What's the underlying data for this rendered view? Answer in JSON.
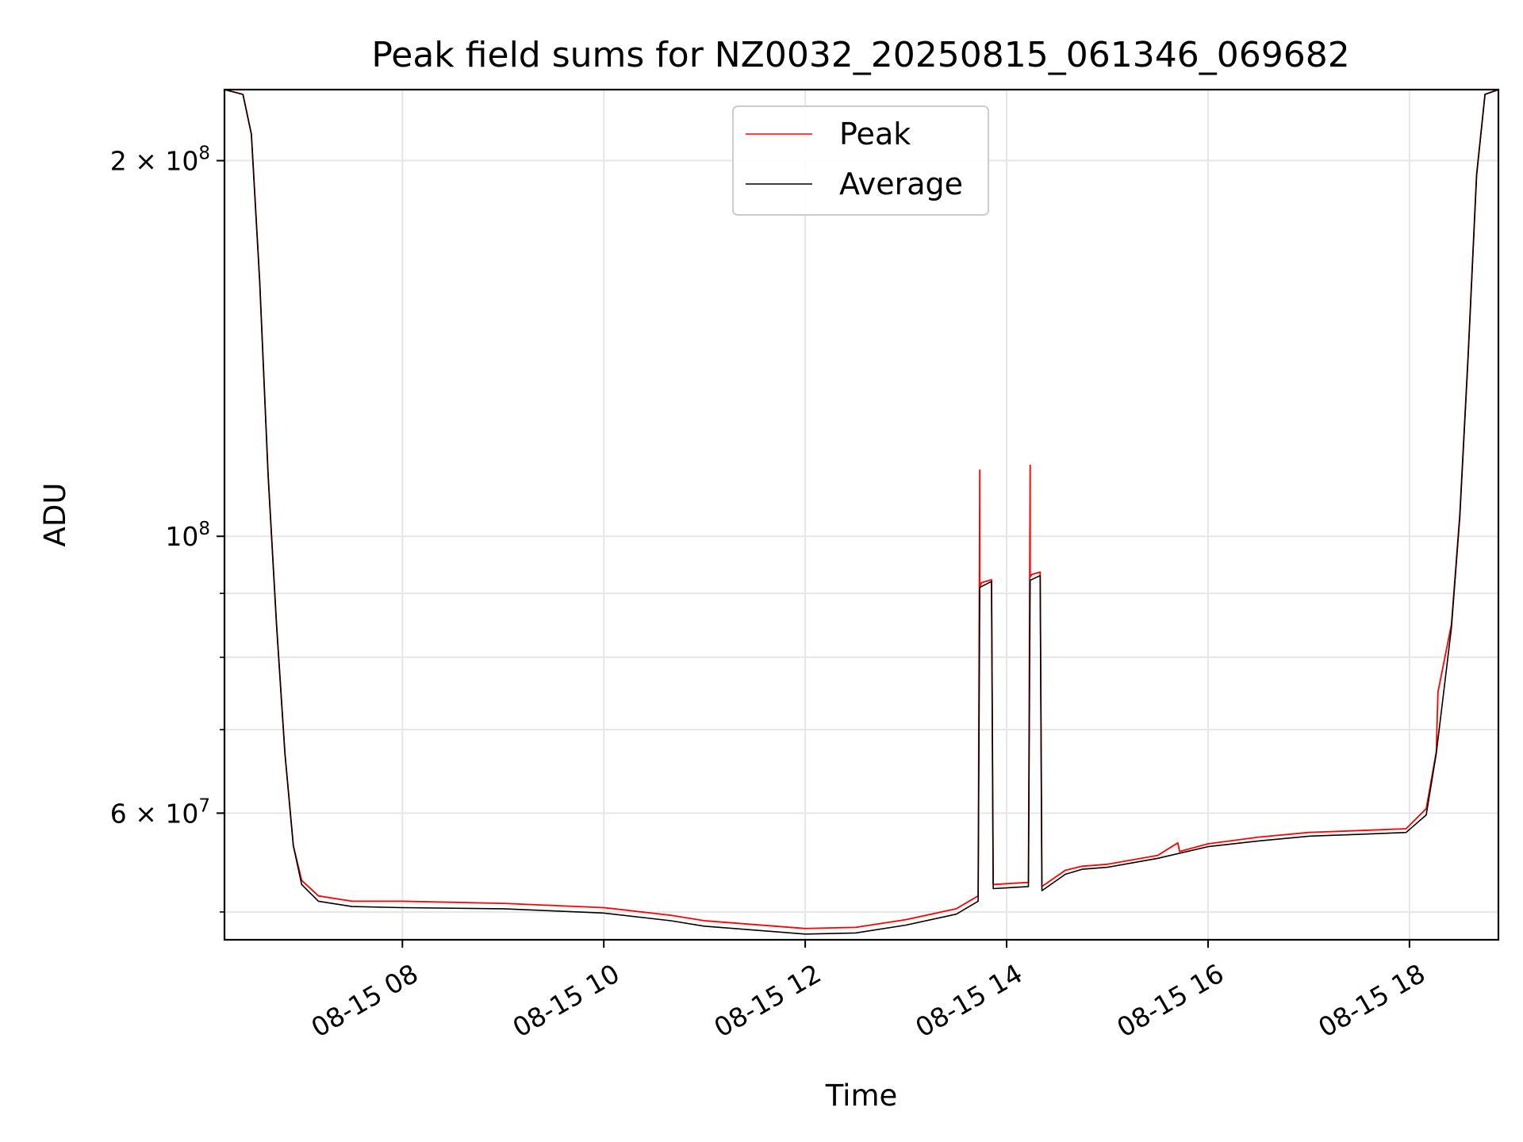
{
  "chart_data": {
    "type": "line",
    "title": "Peak field sums for NZ0032_20250815_061346_069682",
    "xlabel": "Time",
    "ylabel": "ADU",
    "yscale": "log",
    "xlim": [
      "2025-08-15 06:14",
      "2025-08-15 18:53"
    ],
    "ylim": [
      47500000,
      228000000
    ],
    "grid": true,
    "legend_position": "upper center",
    "x_tick_labels": [
      "08-15 08",
      "08-15 10",
      "08-15 12",
      "08-15 14",
      "08-15 16",
      "08-15 18"
    ],
    "y_tick_labels": [
      {
        "value": 200000000,
        "mantissa": "2",
        "base": "10",
        "exponent": "8",
        "times": "×"
      },
      {
        "value": 100000000,
        "mantissa": "",
        "base": "10",
        "exponent": "8",
        "times": ""
      },
      {
        "value": 60000000,
        "mantissa": "6",
        "base": "10",
        "exponent": "7",
        "times": "×"
      }
    ],
    "y_minor_ticks": [
      50000000,
      70000000,
      80000000,
      90000000
    ],
    "series": [
      {
        "name": "Peak",
        "color": "#ff0000",
        "x": [
          "2025-08-15 06:14",
          "2025-08-15 06:25",
          "2025-08-15 06:30",
          "2025-08-15 06:35",
          "2025-08-15 06:40",
          "2025-08-15 06:45",
          "2025-08-15 06:50",
          "2025-08-15 06:55",
          "2025-08-15 07:00",
          "2025-08-15 07:10",
          "2025-08-15 07:30",
          "2025-08-15 08:00",
          "2025-08-15 09:00",
          "2025-08-15 10:00",
          "2025-08-15 10:40",
          "2025-08-15 11:00",
          "2025-08-15 12:00",
          "2025-08-15 12:30",
          "2025-08-15 13:00",
          "2025-08-15 13:30",
          "2025-08-15 13:43",
          "2025-08-15 13:44",
          "2025-08-15 13:44",
          "2025-08-15 13:45",
          "2025-08-15 13:51",
          "2025-08-15 13:52",
          "2025-08-15 14:13",
          "2025-08-15 14:14",
          "2025-08-15 14:14",
          "2025-08-15 14:15",
          "2025-08-15 14:20",
          "2025-08-15 14:21",
          "2025-08-15 14:35",
          "2025-08-15 14:45",
          "2025-08-15 15:00",
          "2025-08-15 15:30",
          "2025-08-15 15:42",
          "2025-08-15 15:43",
          "2025-08-15 16:00",
          "2025-08-15 16:30",
          "2025-08-15 17:00",
          "2025-08-15 17:30",
          "2025-08-15 17:58",
          "2025-08-15 18:10",
          "2025-08-15 18:16",
          "2025-08-15 18:17",
          "2025-08-15 18:25",
          "2025-08-15 18:30",
          "2025-08-15 18:35",
          "2025-08-15 18:40",
          "2025-08-15 18:45",
          "2025-08-15 18:53"
        ],
        "y": [
          228000000,
          226000000,
          210000000,
          160000000,
          112000000,
          85000000,
          67000000,
          56500000,
          53000000,
          51500000,
          51000000,
          51000000,
          50800000,
          50400000,
          49700000,
          49200000,
          48500000,
          48600000,
          49300000,
          50300000,
          51500000,
          113000000,
          91000000,
          91800000,
          92300000,
          52600000,
          52800000,
          114000000,
          92800000,
          93200000,
          93600000,
          52400000,
          54000000,
          54400000,
          54600000,
          55500000,
          56800000,
          55900000,
          56700000,
          57400000,
          57900000,
          58100000,
          58300000,
          60500000,
          67200000,
          75000000,
          85000000,
          104000000,
          140000000,
          195000000,
          226000000,
          228000000
        ]
      },
      {
        "name": "Average",
        "color": "#000000",
        "x": [
          "2025-08-15 06:14",
          "2025-08-15 06:25",
          "2025-08-15 06:30",
          "2025-08-15 06:35",
          "2025-08-15 06:40",
          "2025-08-15 06:45",
          "2025-08-15 06:50",
          "2025-08-15 06:55",
          "2025-08-15 07:00",
          "2025-08-15 07:10",
          "2025-08-15 07:30",
          "2025-08-15 08:00",
          "2025-08-15 09:00",
          "2025-08-15 10:00",
          "2025-08-15 10:40",
          "2025-08-15 11:00",
          "2025-08-15 12:00",
          "2025-08-15 12:30",
          "2025-08-15 13:00",
          "2025-08-15 13:30",
          "2025-08-15 13:43",
          "2025-08-15 13:44",
          "2025-08-15 13:51",
          "2025-08-15 13:52",
          "2025-08-15 14:13",
          "2025-08-15 14:14",
          "2025-08-15 14:20",
          "2025-08-15 14:21",
          "2025-08-15 14:35",
          "2025-08-15 14:45",
          "2025-08-15 15:00",
          "2025-08-15 15:30",
          "2025-08-15 16:00",
          "2025-08-15 16:30",
          "2025-08-15 17:00",
          "2025-08-15 17:30",
          "2025-08-15 17:58",
          "2025-08-15 18:10",
          "2025-08-15 18:16",
          "2025-08-15 18:25",
          "2025-08-15 18:30",
          "2025-08-15 18:35",
          "2025-08-15 18:40",
          "2025-08-15 18:45",
          "2025-08-15 18:53"
        ],
        "y": [
          228000000,
          226000000,
          210000000,
          160000000,
          112000000,
          85000000,
          67000000,
          56500000,
          52600000,
          51000000,
          50500000,
          50400000,
          50300000,
          49900000,
          49200000,
          48700000,
          48000000,
          48100000,
          48800000,
          49800000,
          51000000,
          91000000,
          92000000,
          52200000,
          52400000,
          92200000,
          93000000,
          52000000,
          53600000,
          54100000,
          54300000,
          55200000,
          56400000,
          57000000,
          57500000,
          57700000,
          57900000,
          59800000,
          67000000,
          84500000,
          103500000,
          139500000,
          194500000,
          226000000,
          228000000
        ]
      }
    ]
  }
}
